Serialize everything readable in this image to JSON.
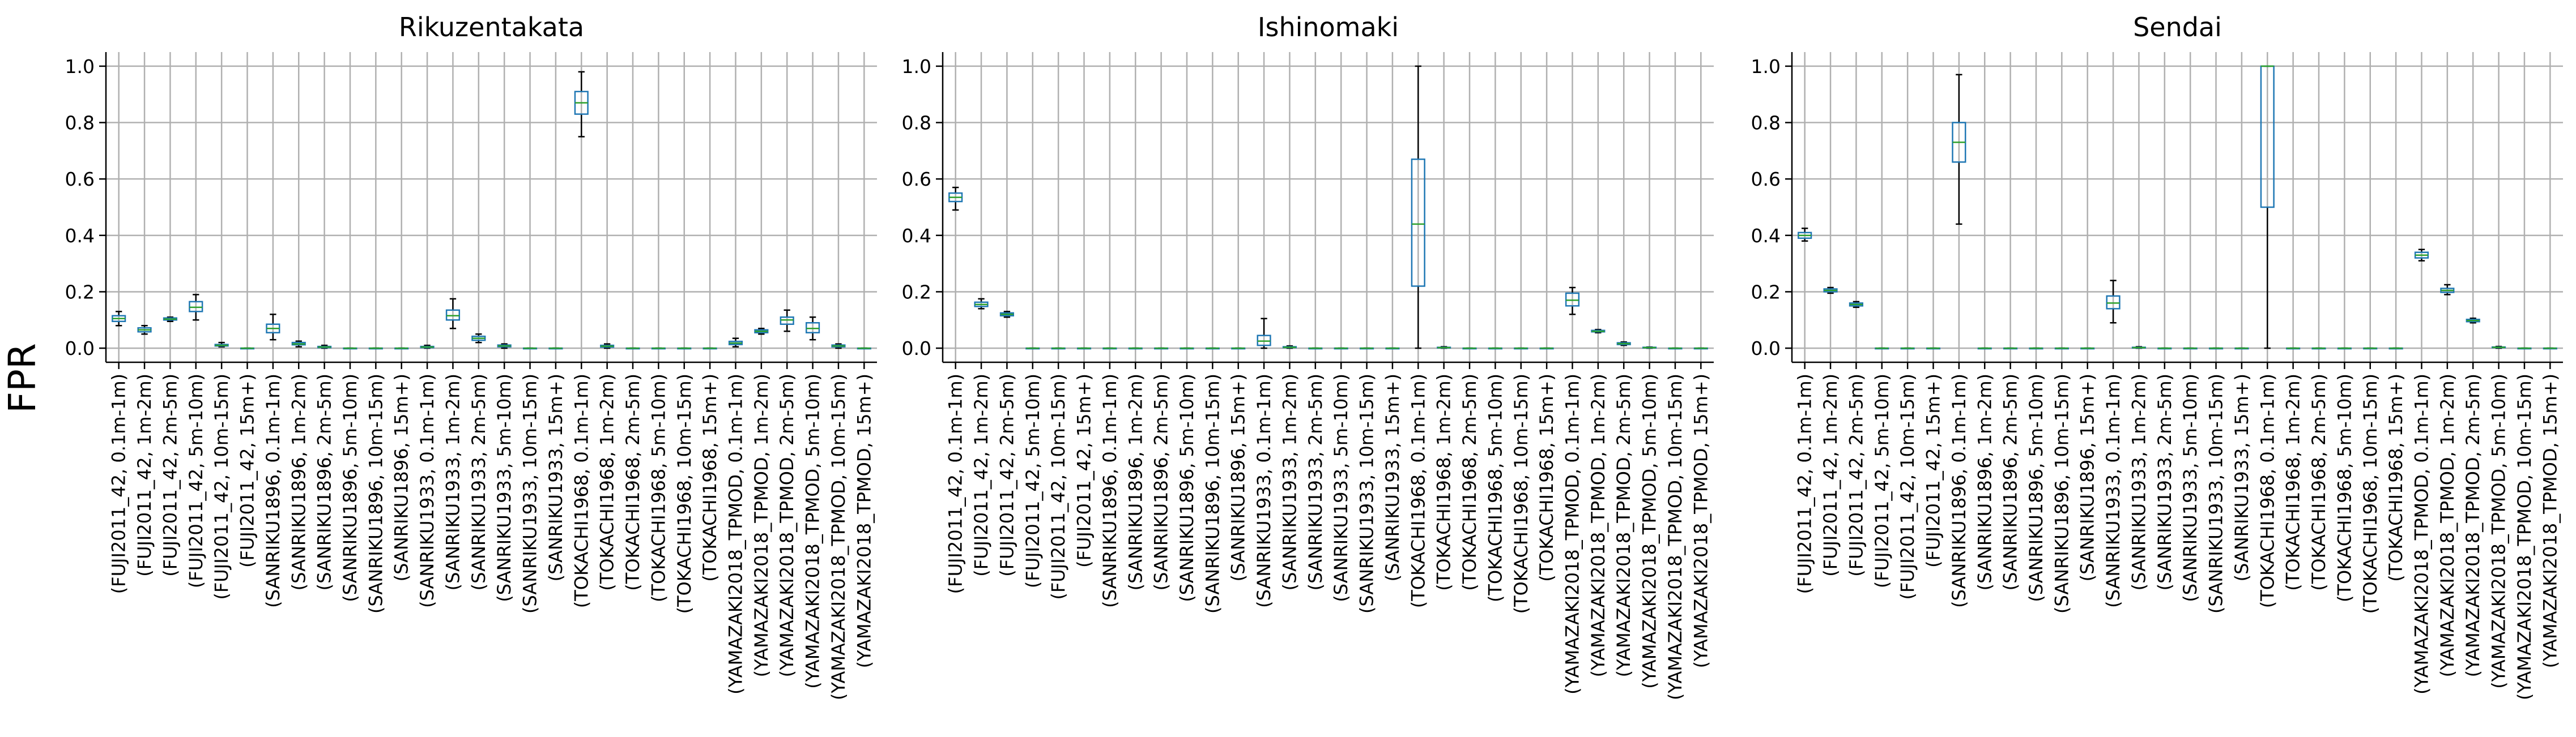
{
  "figure": {
    "ylabel": "FPR"
  },
  "colors": {
    "box": "#1f77b4",
    "median": "#2ca02c",
    "grid": "#b0b0b0",
    "axis": "#000000"
  },
  "chart_data": [
    {
      "type": "box",
      "title": "Rikuzentakata",
      "ylim": [
        -0.05,
        1.05
      ],
      "yticks": [
        "0.0",
        "0.2",
        "0.4",
        "0.6",
        "0.8",
        "1.0"
      ],
      "grid": true,
      "categories": [
        "(FUJI2011_42, 0.1m-1m)",
        "(FUJI2011_42, 1m-2m)",
        "(FUJI2011_42, 2m-5m)",
        "(FUJI2011_42, 5m-10m)",
        "(FUJI2011_42, 10m-15m)",
        "(FUJI2011_42, 15m+)",
        "(SANRIKU1896, 0.1m-1m)",
        "(SANRIKU1896, 1m-2m)",
        "(SANRIKU1896, 2m-5m)",
        "(SANRIKU1896, 5m-10m)",
        "(SANRIKU1896, 10m-15m)",
        "(SANRIKU1896, 15m+)",
        "(SANRIKU1933, 0.1m-1m)",
        "(SANRIKU1933, 1m-2m)",
        "(SANRIKU1933, 2m-5m)",
        "(SANRIKU1933, 5m-10m)",
        "(SANRIKU1933, 10m-15m)",
        "(SANRIKU1933, 15m+)",
        "(TOKACHI1968, 0.1m-1m)",
        "(TOKACHI1968, 1m-2m)",
        "(TOKACHI1968, 2m-5m)",
        "(TOKACHI1968, 5m-10m)",
        "(TOKACHI1968, 10m-15m)",
        "(TOKACHI1968, 15m+)",
        "(YAMAZAKI2018_TPMOD, 0.1m-1m)",
        "(YAMAZAKI2018_TPMOD, 1m-2m)",
        "(YAMAZAKI2018_TPMOD, 2m-5m)",
        "(YAMAZAKI2018_TPMOD, 5m-10m)",
        "(YAMAZAKI2018_TPMOD, 10m-15m)",
        "(YAMAZAKI2018_TPMOD, 15m+)"
      ],
      "boxes": [
        [
          0.08,
          0.095,
          0.105,
          0.115,
          0.13
        ],
        [
          0.05,
          0.058,
          0.065,
          0.072,
          0.08
        ],
        [
          0.095,
          0.1,
          0.103,
          0.107,
          0.11
        ],
        [
          0.1,
          0.13,
          0.145,
          0.165,
          0.19
        ],
        [
          0.005,
          0.008,
          0.01,
          0.013,
          0.02
        ],
        [
          0,
          0,
          0,
          0,
          0
        ],
        [
          0.03,
          0.055,
          0.07,
          0.085,
          0.12
        ],
        [
          0.005,
          0.012,
          0.015,
          0.02,
          0.025
        ],
        [
          0,
          0.002,
          0.004,
          0.006,
          0.01
        ],
        [
          0,
          0,
          0,
          0,
          0
        ],
        [
          0,
          0,
          0,
          0,
          0
        ],
        [
          0,
          0,
          0,
          0,
          0
        ],
        [
          0,
          0.002,
          0.004,
          0.006,
          0.01
        ],
        [
          0.07,
          0.1,
          0.115,
          0.135,
          0.175
        ],
        [
          0.02,
          0.028,
          0.035,
          0.042,
          0.05
        ],
        [
          0,
          0.005,
          0.008,
          0.011,
          0.015
        ],
        [
          0,
          0,
          0,
          0,
          0
        ],
        [
          0,
          0,
          0,
          0,
          0
        ],
        [
          0.75,
          0.83,
          0.87,
          0.91,
          0.98
        ],
        [
          0,
          0.004,
          0.007,
          0.01,
          0.015
        ],
        [
          0,
          0,
          0,
          0,
          0
        ],
        [
          0,
          0,
          0,
          0,
          0
        ],
        [
          0,
          0,
          0,
          0,
          0
        ],
        [
          0,
          0,
          0,
          0,
          0
        ],
        [
          0.005,
          0.013,
          0.018,
          0.024,
          0.035
        ],
        [
          0.05,
          0.055,
          0.06,
          0.065,
          0.07
        ],
        [
          0.06,
          0.085,
          0.1,
          0.11,
          0.135
        ],
        [
          0.03,
          0.055,
          0.07,
          0.09,
          0.11
        ],
        [
          0,
          0.005,
          0.008,
          0.011,
          0.015
        ],
        [
          0,
          0,
          0,
          0,
          0
        ]
      ]
    },
    {
      "type": "box",
      "title": "Ishinomaki",
      "ylim": [
        -0.05,
        1.05
      ],
      "yticks": [
        "0.0",
        "0.2",
        "0.4",
        "0.6",
        "0.8",
        "1.0"
      ],
      "grid": true,
      "categories": [
        "(FUJI2011_42, 0.1m-1m)",
        "(FUJI2011_42, 1m-2m)",
        "(FUJI2011_42, 2m-5m)",
        "(FUJI2011_42, 5m-10m)",
        "(FUJI2011_42, 10m-15m)",
        "(FUJI2011_42, 15m+)",
        "(SANRIKU1896, 0.1m-1m)",
        "(SANRIKU1896, 1m-2m)",
        "(SANRIKU1896, 2m-5m)",
        "(SANRIKU1896, 5m-10m)",
        "(SANRIKU1896, 10m-15m)",
        "(SANRIKU1896, 15m+)",
        "(SANRIKU1933, 0.1m-1m)",
        "(SANRIKU1933, 1m-2m)",
        "(SANRIKU1933, 2m-5m)",
        "(SANRIKU1933, 5m-10m)",
        "(SANRIKU1933, 10m-15m)",
        "(SANRIKU1933, 15m+)",
        "(TOKACHI1968, 0.1m-1m)",
        "(TOKACHI1968, 1m-2m)",
        "(TOKACHI1968, 2m-5m)",
        "(TOKACHI1968, 5m-10m)",
        "(TOKACHI1968, 10m-15m)",
        "(TOKACHI1968, 15m+)",
        "(YAMAZAKI2018_TPMOD, 0.1m-1m)",
        "(YAMAZAKI2018_TPMOD, 1m-2m)",
        "(YAMAZAKI2018_TPMOD, 2m-5m)",
        "(YAMAZAKI2018_TPMOD, 5m-10m)",
        "(YAMAZAKI2018_TPMOD, 10m-15m)",
        "(YAMAZAKI2018_TPMOD, 15m+)"
      ],
      "boxes": [
        [
          0.49,
          0.52,
          0.535,
          0.55,
          0.57
        ],
        [
          0.14,
          0.148,
          0.155,
          0.163,
          0.175
        ],
        [
          0.11,
          0.115,
          0.12,
          0.125,
          0.13
        ],
        [
          0,
          0,
          0,
          0,
          0
        ],
        [
          0,
          0,
          0,
          0,
          0
        ],
        [
          0,
          0,
          0,
          0,
          0
        ],
        [
          0,
          0,
          0,
          0,
          0
        ],
        [
          0,
          0,
          0,
          0,
          0
        ],
        [
          0,
          0,
          0,
          0,
          0
        ],
        [
          0,
          0,
          0,
          0,
          0
        ],
        [
          0,
          0,
          0,
          0,
          0
        ],
        [
          0,
          0,
          0,
          0,
          0
        ],
        [
          0,
          0.01,
          0.025,
          0.045,
          0.105
        ],
        [
          0,
          0.002,
          0.003,
          0.005,
          0.008
        ],
        [
          0,
          0,
          0,
          0,
          0
        ],
        [
          0,
          0,
          0,
          0,
          0
        ],
        [
          0,
          0,
          0,
          0,
          0
        ],
        [
          0,
          0,
          0,
          0,
          0
        ],
        [
          0,
          0.22,
          0.44,
          0.67,
          1.0
        ],
        [
          0,
          0.001,
          0.002,
          0.003,
          0.005
        ],
        [
          0,
          0,
          0,
          0,
          0
        ],
        [
          0,
          0,
          0,
          0,
          0
        ],
        [
          0,
          0,
          0,
          0,
          0
        ],
        [
          0,
          0,
          0,
          0,
          0
        ],
        [
          0.12,
          0.15,
          0.17,
          0.195,
          0.215
        ],
        [
          0.055,
          0.058,
          0.06,
          0.063,
          0.066
        ],
        [
          0.01,
          0.013,
          0.016,
          0.019,
          0.022
        ],
        [
          0,
          0.001,
          0.002,
          0.003,
          0.004
        ],
        [
          0,
          0,
          0,
          0,
          0
        ],
        [
          0,
          0,
          0,
          0,
          0
        ]
      ]
    },
    {
      "type": "box",
      "title": "Sendai",
      "ylim": [
        -0.05,
        1.05
      ],
      "yticks": [
        "0.0",
        "0.2",
        "0.4",
        "0.6",
        "0.8",
        "1.0"
      ],
      "grid": true,
      "categories": [
        "(FUJI2011_42, 0.1m-1m)",
        "(FUJI2011_42, 1m-2m)",
        "(FUJI2011_42, 2m-5m)",
        "(FUJI2011_42, 5m-10m)",
        "(FUJI2011_42, 10m-15m)",
        "(FUJI2011_42, 15m+)",
        "(SANRIKU1896, 0.1m-1m)",
        "(SANRIKU1896, 1m-2m)",
        "(SANRIKU1896, 2m-5m)",
        "(SANRIKU1896, 5m-10m)",
        "(SANRIKU1896, 10m-15m)",
        "(SANRIKU1896, 15m+)",
        "(SANRIKU1933, 0.1m-1m)",
        "(SANRIKU1933, 1m-2m)",
        "(SANRIKU1933, 2m-5m)",
        "(SANRIKU1933, 5m-10m)",
        "(SANRIKU1933, 10m-15m)",
        "(SANRIKU1933, 15m+)",
        "(TOKACHI1968, 0.1m-1m)",
        "(TOKACHI1968, 1m-2m)",
        "(TOKACHI1968, 2m-5m)",
        "(TOKACHI1968, 5m-10m)",
        "(TOKACHI1968, 10m-15m)",
        "(TOKACHI1968, 15m+)",
        "(YAMAZAKI2018_TPMOD, 0.1m-1m)",
        "(YAMAZAKI2018_TPMOD, 1m-2m)",
        "(YAMAZAKI2018_TPMOD, 2m-5m)",
        "(YAMAZAKI2018_TPMOD, 5m-10m)",
        "(YAMAZAKI2018_TPMOD, 10m-15m)",
        "(YAMAZAKI2018_TPMOD, 15m+)"
      ],
      "boxes": [
        [
          0.38,
          0.39,
          0.4,
          0.41,
          0.425
        ],
        [
          0.195,
          0.2,
          0.205,
          0.21,
          0.215
        ],
        [
          0.145,
          0.15,
          0.155,
          0.16,
          0.165
        ],
        [
          0,
          0,
          0,
          0,
          0
        ],
        [
          0,
          0,
          0,
          0,
          0
        ],
        [
          0,
          0,
          0,
          0,
          0
        ],
        [
          0.44,
          0.66,
          0.73,
          0.8,
          0.97
        ],
        [
          0,
          0,
          0,
          0,
          0
        ],
        [
          0,
          0,
          0,
          0,
          0
        ],
        [
          0,
          0,
          0,
          0,
          0
        ],
        [
          0,
          0,
          0,
          0,
          0
        ],
        [
          0,
          0,
          0,
          0,
          0
        ],
        [
          0.09,
          0.14,
          0.16,
          0.185,
          0.24
        ],
        [
          0,
          0.001,
          0.002,
          0.003,
          0.005
        ],
        [
          0,
          0,
          0,
          0,
          0
        ],
        [
          0,
          0,
          0,
          0,
          0
        ],
        [
          0,
          0,
          0,
          0,
          0
        ],
        [
          0,
          0,
          0,
          0,
          0
        ],
        [
          0,
          0.5,
          1.0,
          1.0,
          1.0
        ],
        [
          0,
          0,
          0,
          0,
          0
        ],
        [
          0,
          0,
          0,
          0,
          0
        ],
        [
          0,
          0,
          0,
          0,
          0
        ],
        [
          0,
          0,
          0,
          0,
          0
        ],
        [
          0,
          0,
          0,
          0,
          0
        ],
        [
          0.31,
          0.32,
          0.33,
          0.34,
          0.35
        ],
        [
          0.19,
          0.198,
          0.205,
          0.212,
          0.225
        ],
        [
          0.09,
          0.094,
          0.098,
          0.102,
          0.106
        ],
        [
          0,
          0.002,
          0.003,
          0.004,
          0.006
        ],
        [
          0,
          0,
          0,
          0,
          0
        ],
        [
          0,
          0,
          0,
          0,
          0
        ]
      ]
    }
  ]
}
